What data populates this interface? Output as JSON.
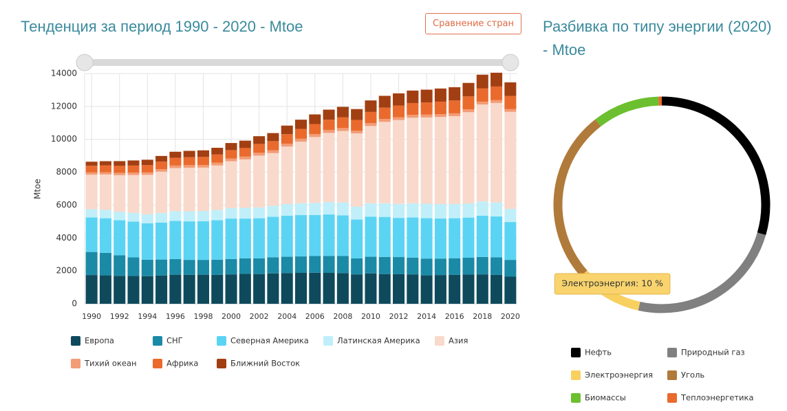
{
  "button": "Сравнение стран",
  "chart_data": [
    {
      "type": "bar",
      "stacked": true,
      "title": "Тенденция за период 1990 - 2020 - Mtoe",
      "y_label": "Mtoe",
      "categories": [
        "1990",
        null,
        "1992",
        null,
        "1994",
        null,
        "1996",
        null,
        "1998",
        null,
        "2000",
        null,
        "2002",
        null,
        "2004",
        null,
        "2006",
        null,
        "2008",
        null,
        "2010",
        null,
        "2012",
        null,
        "2014",
        null,
        "2016",
        null,
        "2018",
        null,
        "2020"
      ],
      "ylim": [
        0,
        14000
      ],
      "yticks": [
        0,
        2000,
        4000,
        6000,
        8000,
        10000,
        12000,
        14000
      ],
      "grid": true,
      "legend": "bottom",
      "series": [
        {
          "name": "Европа",
          "color": "#0f4a5c",
          "values": [
            1750,
            1730,
            1700,
            1690,
            1680,
            1720,
            1770,
            1760,
            1770,
            1760,
            1790,
            1820,
            1810,
            1850,
            1870,
            1880,
            1890,
            1880,
            1870,
            1790,
            1850,
            1810,
            1800,
            1790,
            1730,
            1750,
            1760,
            1780,
            1790,
            1760,
            1650
          ]
        },
        {
          "name": "СНГ",
          "color": "#1b8aa6",
          "values": [
            1400,
            1370,
            1250,
            1130,
            1000,
            970,
            950,
            910,
            900,
            920,
            930,
            940,
            950,
            980,
            990,
            1000,
            1020,
            1030,
            1040,
            970,
            1010,
            1040,
            1040,
            1020,
            1020,
            1000,
            1010,
            1020,
            1060,
            1060,
            1020
          ]
        },
        {
          "name": "Северная Америка",
          "color": "#5bd4f4",
          "values": [
            2100,
            2100,
            2130,
            2180,
            2210,
            2250,
            2320,
            2340,
            2350,
            2400,
            2460,
            2420,
            2440,
            2460,
            2500,
            2510,
            2490,
            2520,
            2470,
            2370,
            2440,
            2430,
            2380,
            2440,
            2460,
            2440,
            2430,
            2440,
            2510,
            2490,
            2300
          ]
        },
        {
          "name": "Латинская Америка",
          "color": "#c0effa",
          "values": [
            500,
            510,
            520,
            530,
            550,
            570,
            590,
            610,
            620,
            630,
            640,
            650,
            660,
            670,
            700,
            720,
            740,
            760,
            780,
            780,
            810,
            830,
            850,
            860,
            870,
            870,
            860,
            860,
            860,
            850,
            800
          ]
        },
        {
          "name": "Азия",
          "color": "#f8d9cb",
          "values": [
            2100,
            2150,
            2220,
            2300,
            2400,
            2520,
            2620,
            2650,
            2640,
            2700,
            2850,
            2950,
            3150,
            3200,
            3500,
            3750,
            4000,
            4200,
            4350,
            4450,
            4700,
            4950,
            5100,
            5200,
            5250,
            5300,
            5350,
            5550,
            5900,
            6050,
            5900
          ]
        },
        {
          "name": "Тихий океан",
          "color": "#f39c76",
          "values": [
            140,
            140,
            145,
            145,
            150,
            150,
            155,
            160,
            160,
            165,
            165,
            170,
            170,
            170,
            175,
            175,
            175,
            175,
            175,
            170,
            175,
            175,
            175,
            175,
            170,
            170,
            170,
            170,
            170,
            170,
            165
          ]
        },
        {
          "name": "Африка",
          "color": "#ea6a2d",
          "values": [
            400,
            410,
            420,
            430,
            440,
            460,
            470,
            480,
            490,
            500,
            510,
            520,
            540,
            560,
            580,
            600,
            610,
            630,
            650,
            650,
            680,
            690,
            710,
            720,
            740,
            760,
            780,
            790,
            810,
            830,
            800
          ]
        },
        {
          "name": "Ближний Восток",
          "color": "#a23f12",
          "values": [
            250,
            260,
            290,
            310,
            330,
            350,
            370,
            390,
            400,
            410,
            430,
            450,
            470,
            490,
            520,
            560,
            590,
            610,
            640,
            660,
            700,
            720,
            740,
            760,
            780,
            800,
            810,
            820,
            830,
            840,
            830
          ]
        }
      ]
    },
    {
      "type": "donut",
      "title": "Разбивка по типу энергии (2020) - Mtoe",
      "legend": "bottom",
      "categories": [
        "Нефть",
        "Природный газ",
        "Электроэнергия",
        "Уголь",
        "Биомассы",
        "Теплоэнергетика"
      ],
      "values": [
        29.5,
        24,
        10,
        26,
        10,
        0.5
      ],
      "value_labels": [
        null,
        null,
        "Электроэнергия: 10 %",
        null,
        null,
        null
      ],
      "colors": [
        "#000000",
        "#808080",
        "#f8d060",
        "#b07a3a",
        "#6cbf2e",
        "#ea6a2d"
      ]
    }
  ]
}
